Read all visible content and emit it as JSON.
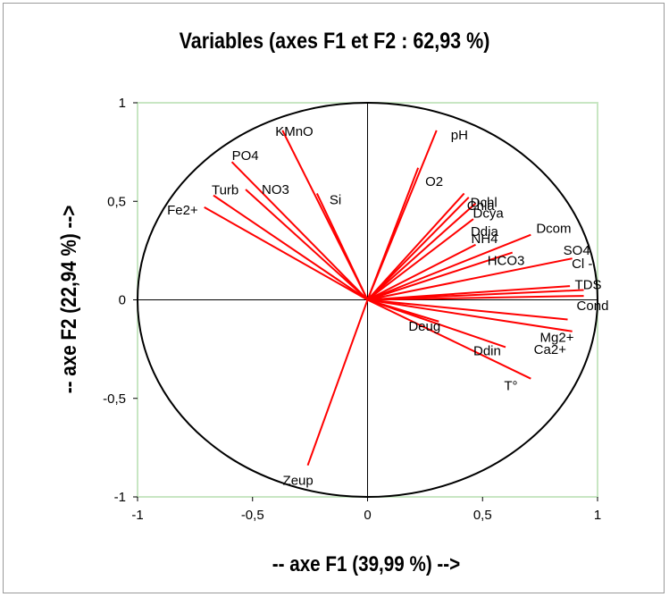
{
  "chart_data": {
    "type": "scatter",
    "title": "Variables (axes F1 et F2 : 62,93 %)",
    "xlabel": "-- axe F1 (39,99 %) -->",
    "ylabel": "-- axe F2 (22,94 %) -->",
    "xlim": [
      -1,
      1
    ],
    "ylim": [
      -1,
      1
    ],
    "xticks": [
      {
        "value": -1,
        "label": "-1"
      },
      {
        "value": -0.5,
        "label": "-0,5"
      },
      {
        "value": 0,
        "label": "0"
      },
      {
        "value": 0.5,
        "label": "0,5"
      },
      {
        "value": 1,
        "label": "1"
      }
    ],
    "yticks": [
      {
        "value": -1,
        "label": "-1"
      },
      {
        "value": -0.5,
        "label": "-0,5"
      },
      {
        "value": 0,
        "label": "0"
      },
      {
        "value": 0.5,
        "label": "0,5"
      },
      {
        "value": 1,
        "label": "1"
      }
    ],
    "correlation_circle": true,
    "vector_color": "#ff0000",
    "plot_border_color": "#c8e6c3",
    "points": [
      {
        "name": "KMnO",
        "x": -0.37,
        "y": 0.86
      },
      {
        "name": "PO4",
        "x": -0.59,
        "y": 0.7
      },
      {
        "name": "Turb",
        "x": -0.67,
        "y": 0.53
      },
      {
        "name": "Fe2+",
        "x": -0.71,
        "y": 0.47
      },
      {
        "name": "NO3",
        "x": -0.53,
        "y": 0.56
      },
      {
        "name": "Si",
        "x": -0.22,
        "y": 0.54
      },
      {
        "name": "pH",
        "x": 0.3,
        "y": 0.86
      },
      {
        "name": "O2",
        "x": 0.22,
        "y": 0.67
      },
      {
        "name": "Dchl",
        "x": 0.42,
        "y": 0.54
      },
      {
        "name": "Chla",
        "x": 0.44,
        "y": 0.52
      },
      {
        "name": "Dcya",
        "x": 0.47,
        "y": 0.49
      },
      {
        "name": "Ddia",
        "x": 0.46,
        "y": 0.41
      },
      {
        "name": "Dcom",
        "x": 0.71,
        "y": 0.33
      },
      {
        "name": "NH4",
        "x": 0.47,
        "y": 0.28
      },
      {
        "name": "HCO3",
        "x": 0.63,
        "y": 0.24
      },
      {
        "name": "SO4",
        "x": 0.89,
        "y": 0.21
      },
      {
        "name": "Cl -",
        "x": 0.88,
        "y": 0.07
      },
      {
        "name": "TDS",
        "x": 0.94,
        "y": 0.05
      },
      {
        "name": "Cond",
        "x": 0.94,
        "y": 0.02
      },
      {
        "name": "Mg2+",
        "x": 0.87,
        "y": -0.1
      },
      {
        "name": "Ca2+",
        "x": 0.89,
        "y": -0.16
      },
      {
        "name": "Deug",
        "x": 0.31,
        "y": -0.11
      },
      {
        "name": "Ddin",
        "x": 0.6,
        "y": -0.24
      },
      {
        "name": "T°",
        "x": 0.71,
        "y": -0.4
      },
      {
        "name": "Zeup",
        "x": -0.26,
        "y": -0.84
      }
    ]
  }
}
